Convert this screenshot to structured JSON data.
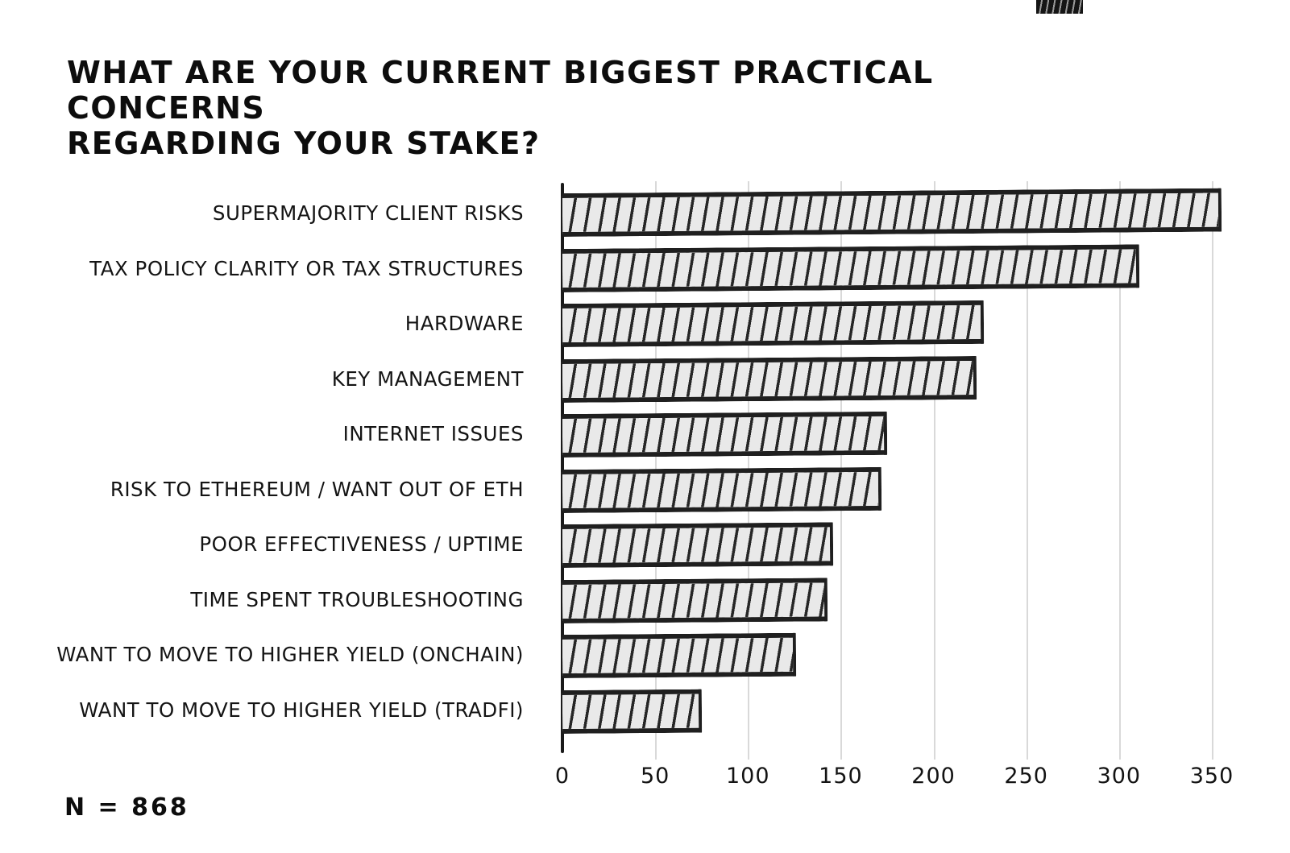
{
  "title": {
    "line1": "WHAT ARE YOUR CURRENT BIGGEST PRACTICAL CONCERNS",
    "line2": "REGARDING YOUR STAKE?"
  },
  "sample_size_label": "N = 868",
  "colors": {
    "background": "#ffffff",
    "bar_fill": "#e9e9e9",
    "bar_stroke": "#1f1f1f",
    "gridline": "#d9d9d9",
    "text": "#111111"
  },
  "chart_data": {
    "type": "bar",
    "orientation": "horizontal",
    "title": "WHAT ARE YOUR CURRENT BIGGEST PRACTICAL CONCERNS REGARDING YOUR STAKE?",
    "categories": [
      "SUPERMAJORITY CLIENT RISKS",
      "TAX POLICY CLARITY OR TAX STRUCTURES",
      "HARDWARE",
      "KEY MANAGEMENT",
      "INTERNET ISSUES",
      "RISK TO ETHEREUM /  WANT OUT OF ETH",
      "POOR EFFECTIVENESS / UPTIME",
      "TIME SPENT TROUBLESHOOTING",
      "WANT TO MOVE TO HIGHER YIELD (ONCHAIN)",
      "WANT TO MOVE TO HIGHER YIELD (TRADFI)"
    ],
    "values": [
      355,
      311,
      227,
      223,
      175,
      172,
      146,
      143,
      126,
      75
    ],
    "xlabel": "",
    "ylabel": "",
    "xlim": [
      0,
      350
    ],
    "x_ticks": [
      0,
      50,
      100,
      150,
      200,
      250,
      300,
      350
    ],
    "grid": true,
    "legend": false,
    "n": 868,
    "style": "hand-drawn hatched bars"
  }
}
